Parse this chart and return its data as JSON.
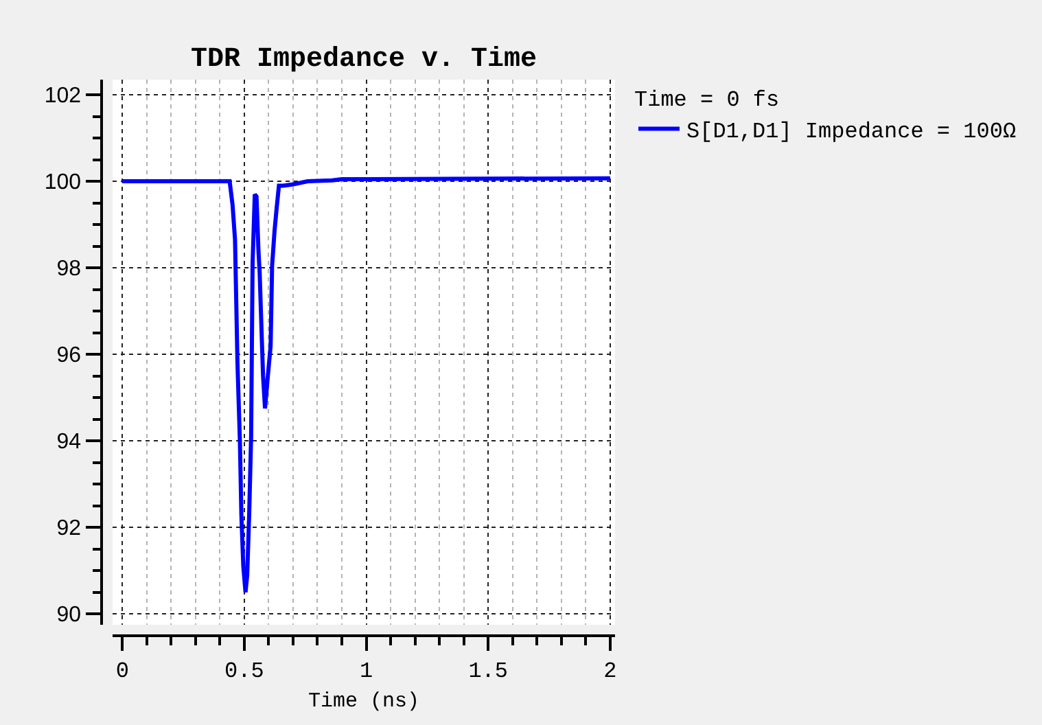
{
  "chart_data": {
    "type": "line",
    "title": "TDR Impedance v. Time",
    "xlabel": "Time (ns)",
    "legend_title": "Time = 0 fs",
    "x": [
      0,
      0.44,
      0.452,
      0.462,
      0.472,
      0.482,
      0.488,
      0.496,
      0.505,
      0.512,
      0.52,
      0.528,
      0.534,
      0.543,
      0.55,
      0.558,
      0.563,
      0.571,
      0.577,
      0.585,
      0.595,
      0.608,
      0.614,
      0.624,
      0.633,
      0.642,
      0.66,
      0.7,
      0.76,
      0.86,
      0.9,
      1.0,
      2.0
    ],
    "series": [
      {
        "name": "S[D1,D1] Impedance = 100Ω",
        "color": "#0000ff",
        "values": [
          100,
          100,
          99.45,
          98.65,
          95.8,
          94.0,
          92.3,
          91.1,
          90.5,
          90.9,
          92.3,
          94.1,
          98.1,
          99.7,
          99.65,
          98.4,
          97.9,
          96.5,
          95.5,
          94.75,
          95.4,
          96.2,
          98.05,
          98.85,
          99.4,
          99.9,
          99.9,
          99.93,
          100.0,
          100.02,
          100.05,
          100.05,
          100.07
        ]
      }
    ],
    "xlim": [
      -0.04,
      2.02
    ],
    "ylim": [
      89.75,
      102.35
    ],
    "xticks": [
      0,
      {
        "value": 0.1,
        "label": null
      },
      {
        "value": 0.2,
        "label": null
      },
      {
        "value": 0.3,
        "label": null
      },
      {
        "value": 0.4,
        "label": null
      },
      0.5,
      {
        "value": 0.6,
        "label": null
      },
      {
        "value": 0.7,
        "label": null
      },
      {
        "value": 0.8,
        "label": null
      },
      {
        "value": 0.9,
        "label": null
      },
      1,
      {
        "value": 1.1,
        "label": null
      },
      {
        "value": 1.2,
        "label": null
      },
      {
        "value": 1.3,
        "label": null
      },
      {
        "value": 1.4,
        "label": null
      },
      1.5,
      {
        "value": 1.6,
        "label": null
      },
      {
        "value": 1.7,
        "label": null
      },
      {
        "value": 1.8,
        "label": null
      },
      {
        "value": 1.9,
        "label": null
      },
      2
    ],
    "yticks": [
      90,
      {
        "value": 90.5,
        "label": null
      },
      {
        "value": 91,
        "label": null
      },
      {
        "value": 91.5,
        "label": null
      },
      92,
      {
        "value": 92.5,
        "label": null
      },
      {
        "value": 93,
        "label": null
      },
      {
        "value": 93.5,
        "label": null
      },
      94,
      {
        "value": 94.5,
        "label": null
      },
      {
        "value": 95,
        "label": null
      },
      {
        "value": 95.5,
        "label": null
      },
      96,
      {
        "value": 96.5,
        "label": null
      },
      {
        "value": 97,
        "label": null
      },
      {
        "value": 97.5,
        "label": null
      },
      98,
      {
        "value": 98.5,
        "label": null
      },
      {
        "value": 99,
        "label": null
      },
      {
        "value": 99.5,
        "label": null
      },
      100,
      {
        "value": 100.5,
        "label": null
      },
      {
        "value": 101,
        "label": null
      },
      {
        "value": 101.5,
        "label": null
      },
      102
    ],
    "grid": true,
    "legend": "top right",
    "line_style": "solid"
  }
}
